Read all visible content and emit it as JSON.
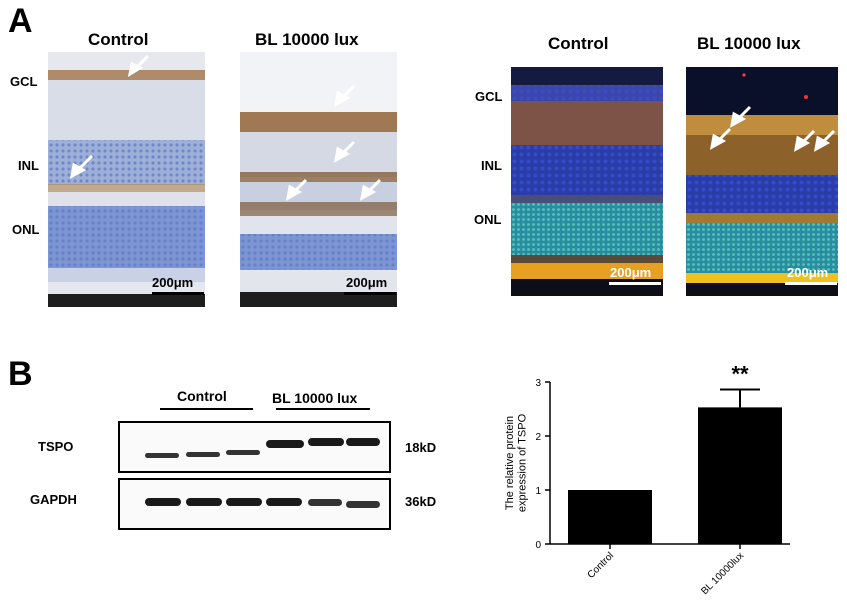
{
  "panel_a": {
    "letter": "A",
    "ihc_titles": [
      "Control",
      "BL 10000 lux"
    ],
    "if_titles": [
      "Control",
      "BL 10000 lux"
    ],
    "layers": [
      "GCL",
      "INL",
      "ONL"
    ],
    "scale_bar": "200μm"
  },
  "panel_b": {
    "letter": "B",
    "groups": [
      "Control",
      "BL 10000 lux"
    ],
    "blots": [
      {
        "name": "TSPO",
        "size": "18kD"
      },
      {
        "name": "GAPDH",
        "size": "36kD"
      }
    ]
  },
  "chart_data": {
    "type": "bar",
    "categories": [
      "Control",
      "BL 10000lux"
    ],
    "values": [
      1.0,
      2.53
    ],
    "errors": [
      0,
      0.33
    ],
    "ylabel": "The relative protein expression of TSPO",
    "ylim": [
      0,
      3
    ],
    "yticks": [
      0,
      1,
      2,
      3
    ],
    "annotation": "**",
    "bar_color": "#000000"
  }
}
